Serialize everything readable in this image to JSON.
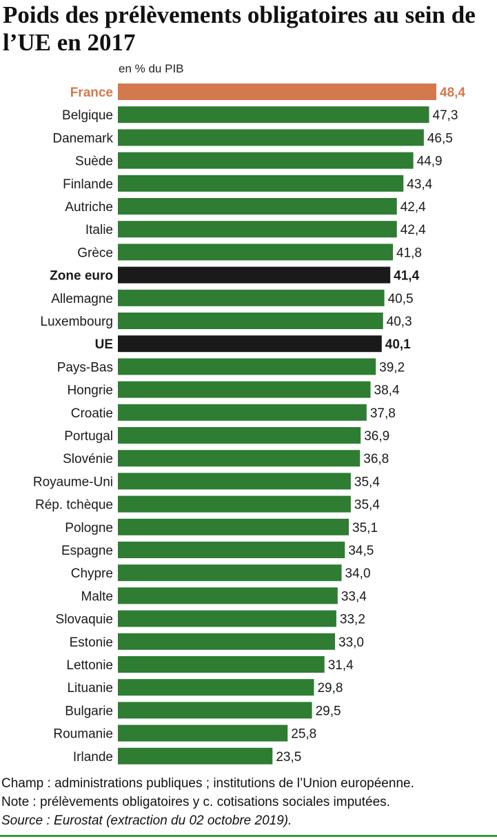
{
  "title": "Poids des prélèvements obligatoires au sein de l’UE en 2017",
  "unit_label": "en % du PIB",
  "notes": {
    "champ": "Champ : administrations publiques ; institutions de l’Union européenne.",
    "note": "Note : prélèvements obligatoires y c. cotisations sociales imputées.",
    "source": "Source : Eurostat (extraction du 02 octobre 2019)."
  },
  "colors": {
    "country": "#2e7d32",
    "highlight": "#d4784e",
    "aggregate": "#1a1a1a"
  },
  "chart_data": {
    "type": "bar",
    "orientation": "horizontal",
    "title": "Poids des prélèvements obligatoires au sein de l’UE en 2017",
    "xlabel": "en % du PIB",
    "xlim": [
      0,
      50
    ],
    "grid": false,
    "categories": [
      "France",
      "Belgique",
      "Danemark",
      "Suède",
      "Finlande",
      "Autriche",
      "Italie",
      "Grèce",
      "Zone euro",
      "Allemagne",
      "Luxembourg",
      "UE",
      "Pays-Bas",
      "Hongrie",
      "Croatie",
      "Portugal",
      "Slovénie",
      "Royaume-Uni",
      "Rép. tchèque",
      "Pologne",
      "Espagne",
      "Chypre",
      "Malte",
      "Slovaquie",
      "Estonie",
      "Lettonie",
      "Lituanie",
      "Bulgarie",
      "Roumanie",
      "Irlande"
    ],
    "values": [
      48.4,
      47.3,
      46.5,
      44.9,
      43.4,
      42.4,
      42.4,
      41.8,
      41.4,
      40.5,
      40.3,
      40.1,
      39.2,
      38.4,
      37.8,
      36.9,
      36.8,
      35.4,
      35.4,
      35.1,
      34.5,
      34.0,
      33.4,
      33.2,
      33.0,
      31.4,
      29.8,
      29.5,
      25.8,
      23.5
    ],
    "value_labels": [
      "48,4",
      "47,3",
      "46,5",
      "44,9",
      "43,4",
      "42,4",
      "42,4",
      "41,8",
      "41,4",
      "40,5",
      "40,3",
      "40,1",
      "39,2",
      "38,4",
      "37,8",
      "36,9",
      "36,8",
      "35,4",
      "35,4",
      "35,1",
      "34,5",
      "34,0",
      "33,4",
      "33,2",
      "33,0",
      "31,4",
      "29,8",
      "29,5",
      "25,8",
      "23,5"
    ],
    "kinds": [
      "highlight",
      "country",
      "country",
      "country",
      "country",
      "country",
      "country",
      "country",
      "aggregate",
      "country",
      "country",
      "aggregate",
      "country",
      "country",
      "country",
      "country",
      "country",
      "country",
      "country",
      "country",
      "country",
      "country",
      "country",
      "country",
      "country",
      "country",
      "country",
      "country",
      "country",
      "country"
    ]
  }
}
